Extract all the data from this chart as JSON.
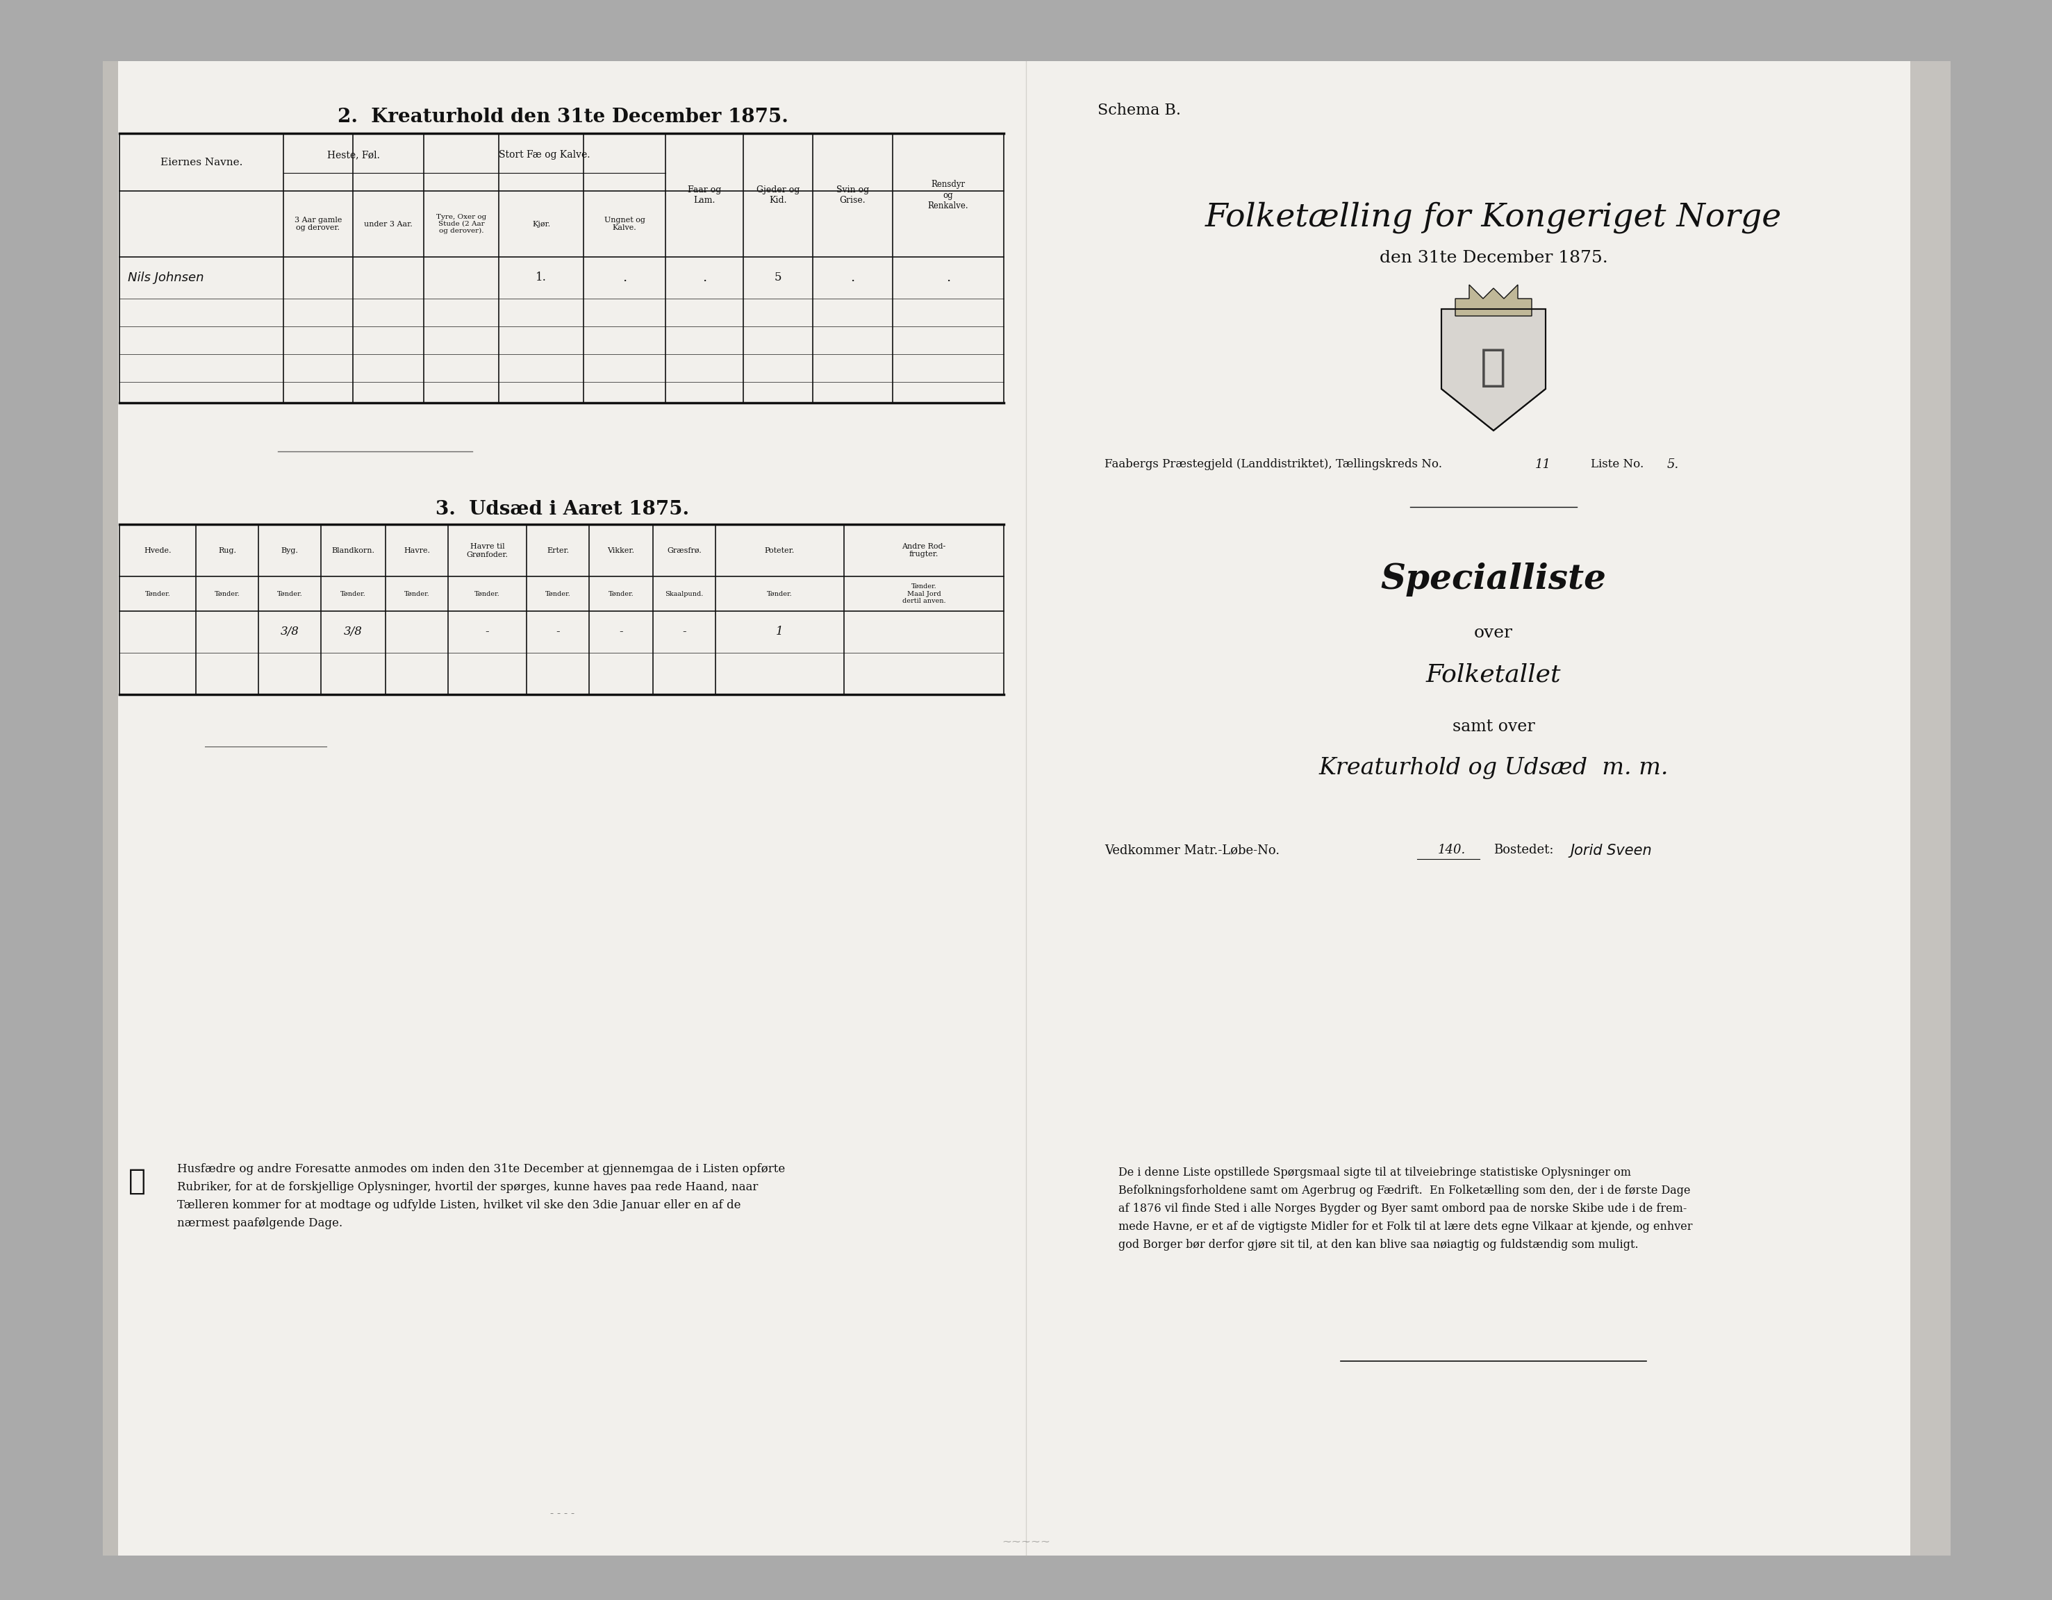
{
  "bg_outer": "#aaaaaa",
  "bg_page": "#f2f0ec",
  "text_color": "#111111",
  "title_left": "2.  Kreaturhold den 31te December 1875.",
  "schema_b": "Schema B.",
  "main_title": "Folketælling for Kongeriget Norge",
  "main_subtitle": "den 31te December 1875.",
  "specialliste": "Specialliste",
  "over": "over",
  "folketallet": "Folketallet",
  "samt_over": "samt over",
  "kreaturhold": "Kreaturhold og Udsæd  m. m.",
  "vedkommende_label": "Vedkommer Matr.-Løbe-No.",
  "matr_no": "140.",
  "bostedet_label": "Bostedet:",
  "bostedet_val": "Jorid Sveen",
  "section3_title": "3.  Udsæd i Aaret 1875.",
  "row1_name": "Nils Johnsen",
  "footer_left_text": "Husfædre og andre Foresatte anmodes om inden den 31te December at gjennemgaa de i Listen opførte\nRubriker, for at de forskjellige Oplysninger, hvortil der spørges, kunne haves paa rede Haand, naar\nTælleren kommer for at modtage og udfylde Listen, hvilket vil ske den 3die Januar eller en af de\nnærmest paafølgende Dage.",
  "footer_right_text": "De i denne Liste opstillede Spørgsmaal sigte til at tilveiebringe statistiske Oplysninger om\nBefolkningsforholdene samt om Agerbrug og Fædrift.  En Folketælling som den, der i de første Dage\naf 1876 vil finde Sted i alle Norges Bygder og Byer samt ombord paa de norske Skibe ude i de frem-\nmede Havne, er et af de vigtigste Midler for et Folk til at lære dets egne Vilkaar at kjende, og enhver\ngod Borger bør derfor gjøre sit til, at den kan blive saa nøiagtig og fuldstændig som muligt.",
  "faabergs_line1": "Faabergs Præstegjeld (Landdistriktet), Tællingskreds No.",
  "faabergs_num1": "11",
  "faabergs_line2": "Liste No.",
  "faabergs_num2": "5."
}
